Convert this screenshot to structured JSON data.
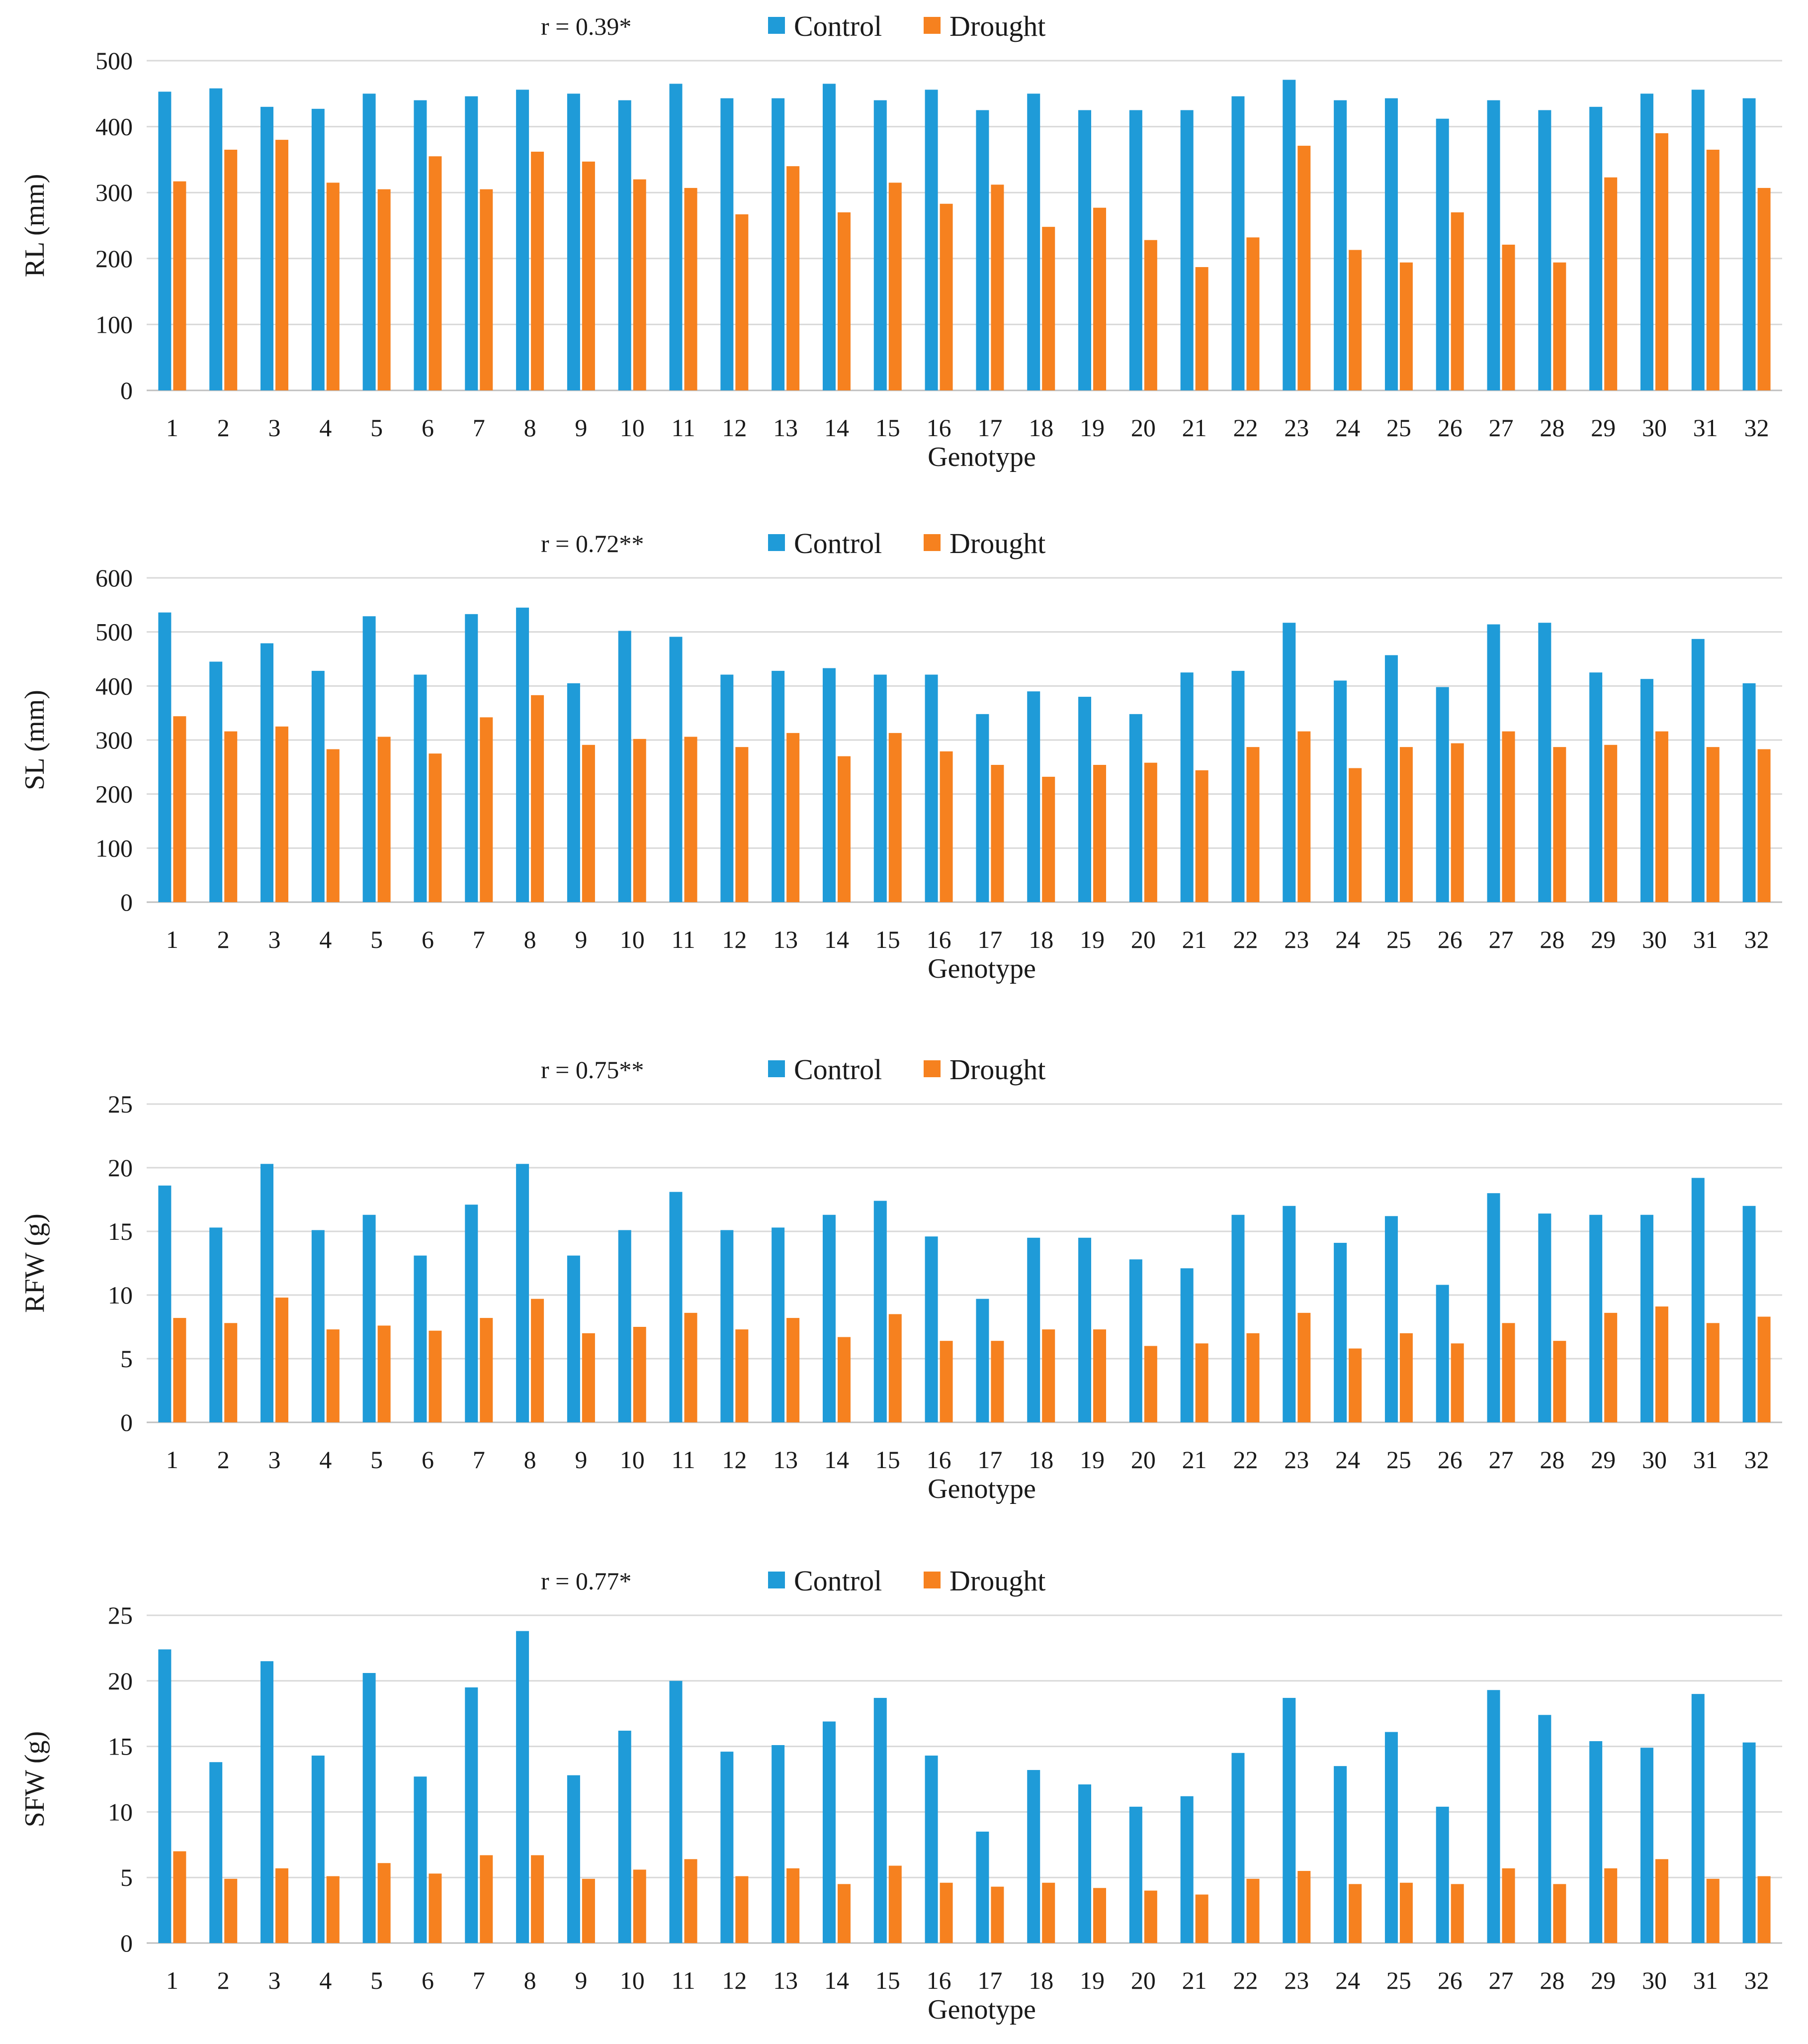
{
  "chart_data": [
    {
      "type": "bar",
      "annotation": "r = 0.39*",
      "xlabel": "Genotype",
      "ylabel": "RL (mm)",
      "ylim": [
        0,
        500
      ],
      "yticks": [
        0,
        100,
        200,
        300,
        400,
        500
      ],
      "categories": [
        "1",
        "2",
        "3",
        "4",
        "5",
        "6",
        "7",
        "8",
        "9",
        "10",
        "11",
        "12",
        "13",
        "14",
        "15",
        "16",
        "17",
        "18",
        "19",
        "20",
        "21",
        "22",
        "23",
        "24",
        "25",
        "26",
        "27",
        "28",
        "29",
        "30",
        "31",
        "32"
      ],
      "series": [
        {
          "name": "Control",
          "color": "#1f9bd8",
          "values": [
            453,
            458,
            430,
            427,
            450,
            440,
            446,
            456,
            450,
            440,
            465,
            443,
            443,
            465,
            440,
            456,
            425,
            450,
            425,
            425,
            425,
            446,
            471,
            440,
            443,
            412,
            440,
            425,
            430,
            450,
            456,
            443
          ]
        },
        {
          "name": "Drought",
          "color": "#f6811f",
          "values": [
            317,
            365,
            380,
            315,
            305,
            355,
            305,
            362,
            347,
            320,
            307,
            267,
            340,
            270,
            315,
            283,
            312,
            248,
            277,
            228,
            187,
            232,
            371,
            213,
            194,
            270,
            221,
            194,
            323,
            390,
            365,
            307
          ]
        }
      ],
      "legend": "top-center"
    },
    {
      "type": "bar",
      "annotation": "r = 0.72**",
      "xlabel": "Genotype",
      "ylabel": "SL (mm)",
      "ylim": [
        0,
        600
      ],
      "yticks": [
        0,
        100,
        200,
        300,
        400,
        500,
        600
      ],
      "categories": [
        "1",
        "2",
        "3",
        "4",
        "5",
        "6",
        "7",
        "8",
        "9",
        "10",
        "11",
        "12",
        "13",
        "14",
        "15",
        "16",
        "17",
        "18",
        "19",
        "20",
        "21",
        "22",
        "23",
        "24",
        "25",
        "26",
        "27",
        "28",
        "29",
        "30",
        "31",
        "32"
      ],
      "series": [
        {
          "name": "Control",
          "color": "#1f9bd8",
          "values": [
            536,
            445,
            479,
            428,
            529,
            421,
            533,
            545,
            405,
            502,
            491,
            421,
            428,
            433,
            421,
            421,
            348,
            390,
            380,
            348,
            425,
            428,
            517,
            410,
            457,
            398,
            514,
            517,
            425,
            413,
            487,
            405
          ]
        },
        {
          "name": "Drought",
          "color": "#f6811f",
          "values": [
            344,
            316,
            325,
            283,
            306,
            275,
            342,
            383,
            291,
            302,
            306,
            287,
            313,
            270,
            313,
            279,
            254,
            232,
            254,
            258,
            244,
            287,
            316,
            248,
            287,
            294,
            316,
            287,
            291,
            316,
            287,
            283
          ]
        }
      ],
      "legend": "top-center"
    },
    {
      "type": "bar",
      "annotation": "r = 0.75**",
      "xlabel": "Genotype",
      "ylabel": "RFW (g)",
      "ylim": [
        0,
        25
      ],
      "yticks": [
        0,
        5,
        10,
        15,
        20,
        25
      ],
      "categories": [
        "1",
        "2",
        "3",
        "4",
        "5",
        "6",
        "7",
        "8",
        "9",
        "10",
        "11",
        "12",
        "13",
        "14",
        "15",
        "16",
        "17",
        "18",
        "19",
        "20",
        "21",
        "22",
        "23",
        "24",
        "25",
        "26",
        "27",
        "28",
        "29",
        "30",
        "31",
        "32"
      ],
      "series": [
        {
          "name": "Control",
          "color": "#1f9bd8",
          "values": [
            18.6,
            15.3,
            20.3,
            15.1,
            16.3,
            13.1,
            17.1,
            20.3,
            13.1,
            15.1,
            18.1,
            15.1,
            15.3,
            16.3,
            17.4,
            14.6,
            9.7,
            14.5,
            14.5,
            12.8,
            12.1,
            16.3,
            17.0,
            14.1,
            16.2,
            10.8,
            18.0,
            16.4,
            16.3,
            16.3,
            19.2,
            17.0
          ]
        },
        {
          "name": "Drought",
          "color": "#f6811f",
          "values": [
            8.2,
            7.8,
            9.8,
            7.3,
            7.6,
            7.2,
            8.2,
            9.7,
            7.0,
            7.5,
            8.6,
            7.3,
            8.2,
            6.7,
            8.5,
            6.4,
            6.4,
            7.3,
            7.3,
            6.0,
            6.2,
            7.0,
            8.6,
            5.8,
            7.0,
            6.2,
            7.8,
            6.4,
            8.6,
            9.1,
            7.8,
            8.3
          ]
        }
      ],
      "legend": "top-center"
    },
    {
      "type": "bar",
      "annotation": "r = 0.77*",
      "xlabel": "Genotype",
      "ylabel": "SFW (g)",
      "ylim": [
        0,
        25
      ],
      "yticks": [
        0,
        5,
        10,
        15,
        20,
        25
      ],
      "categories": [
        "1",
        "2",
        "3",
        "4",
        "5",
        "6",
        "7",
        "8",
        "9",
        "10",
        "11",
        "12",
        "13",
        "14",
        "15",
        "16",
        "17",
        "18",
        "19",
        "20",
        "21",
        "22",
        "23",
        "24",
        "25",
        "26",
        "27",
        "28",
        "29",
        "30",
        "31",
        "32"
      ],
      "series": [
        {
          "name": "Control",
          "color": "#1f9bd8",
          "values": [
            22.4,
            13.8,
            21.5,
            14.3,
            20.6,
            12.7,
            19.5,
            23.8,
            12.8,
            16.2,
            20.0,
            14.6,
            15.1,
            16.9,
            18.7,
            14.3,
            8.5,
            13.2,
            12.1,
            10.4,
            11.2,
            14.5,
            18.7,
            13.5,
            16.1,
            10.4,
            19.3,
            17.4,
            15.4,
            14.9,
            19.0,
            15.3
          ]
        },
        {
          "name": "Drought",
          "color": "#f6811f",
          "values": [
            7.0,
            4.9,
            5.7,
            5.1,
            6.1,
            5.3,
            6.7,
            6.7,
            4.9,
            5.6,
            6.4,
            5.1,
            5.7,
            4.5,
            5.9,
            4.6,
            4.3,
            4.6,
            4.2,
            4.0,
            3.7,
            4.9,
            5.5,
            4.5,
            4.6,
            4.5,
            5.7,
            4.5,
            5.7,
            6.4,
            4.9,
            5.1
          ]
        }
      ],
      "legend": "top-center"
    }
  ]
}
